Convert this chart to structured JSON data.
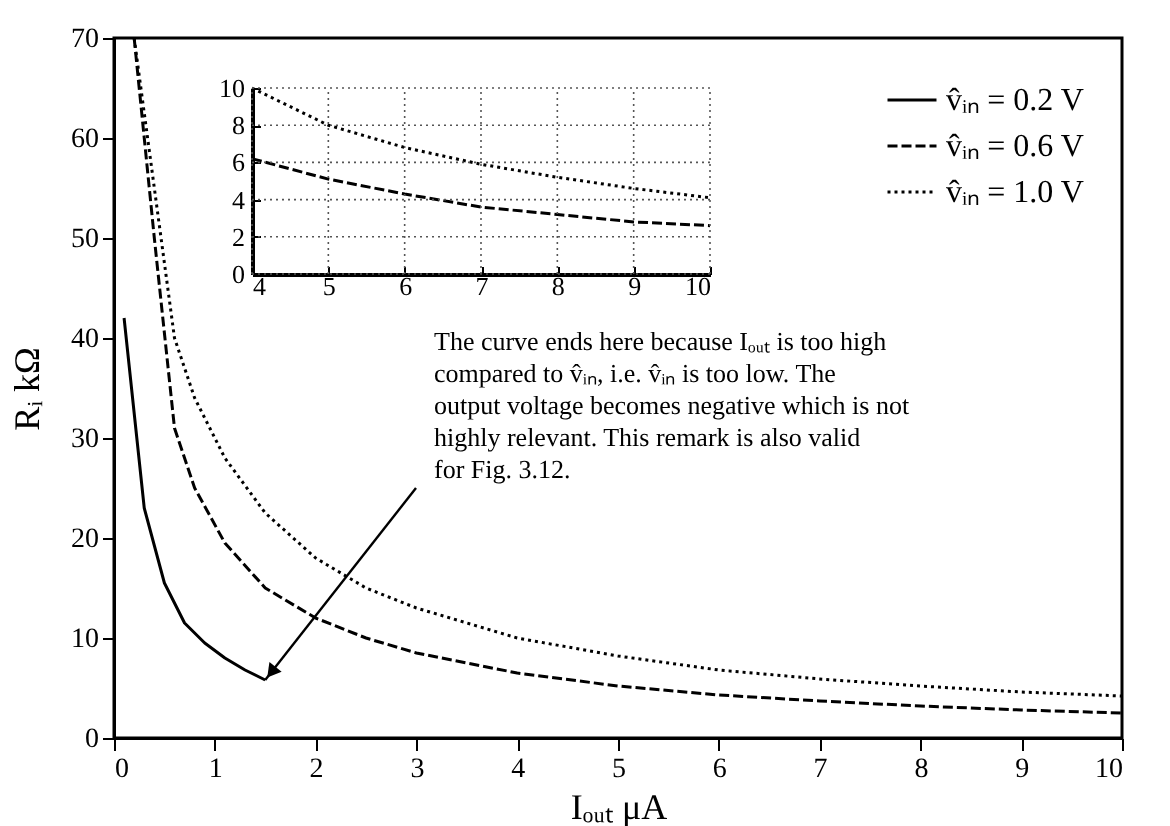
{
  "chart_data": [
    {
      "type": "line",
      "xlabel": "Iₒᵤₜ μA",
      "ylabel": "Rᵢ kΩ",
      "xlim": [
        0,
        10
      ],
      "ylim": [
        0,
        70
      ],
      "xticks": [
        0,
        1,
        2,
        3,
        4,
        5,
        6,
        7,
        8,
        9,
        10
      ],
      "yticks": [
        0,
        10,
        20,
        30,
        40,
        50,
        60,
        70
      ],
      "grid": false,
      "legend": "top right",
      "marker": "none",
      "annotations": [
        {
          "text": "The curve ends here because Iₒᵤₜ is too high compared to v̂ᵢₙ, i.e. v̂ᵢₙ is too low. The output voltage becomes negative which is not highly relevant. This remark is also valid for Fig. 3.12.",
          "x": 1.5,
          "y": 5.8
        }
      ],
      "series": [
        {
          "name": "v̂ᵢₙ = 0.2 V",
          "color": "#000000",
          "line_style": "solid",
          "x": [
            0.1,
            0.3,
            0.5,
            0.7,
            0.9,
            1.1,
            1.3,
            1.5
          ],
          "values": [
            42,
            23,
            15.5,
            11.5,
            9.5,
            8,
            6.8,
            5.8
          ]
        },
        {
          "name": "v̂ᵢₙ = 0.6 V",
          "color": "#000000",
          "line_style": "dashed",
          "x": [
            0.2,
            0.4,
            0.6,
            0.8,
            1.1,
            1.5,
            2,
            2.5,
            3,
            4,
            5,
            6,
            7,
            8,
            9,
            10
          ],
          "values": [
            70,
            50,
            31,
            25,
            19.5,
            15,
            12,
            10,
            8.5,
            6.5,
            5.2,
            4.3,
            3.7,
            3.2,
            2.8,
            2.5
          ]
        },
        {
          "name": "v̂ᵢₙ = 1.0 V",
          "color": "#000000",
          "line_style": "dotted",
          "x": [
            0.2,
            0.4,
            0.6,
            0.8,
            1.1,
            1.5,
            2,
            2.5,
            3,
            4,
            5,
            6,
            7,
            8,
            9,
            10
          ],
          "values": [
            70,
            55,
            40,
            34,
            28,
            22.5,
            18,
            15,
            13,
            10,
            8.2,
            6.8,
            5.9,
            5.2,
            4.6,
            4.2
          ]
        }
      ]
    },
    {
      "type": "line",
      "xlim": [
        4,
        10
      ],
      "ylim": [
        0,
        10
      ],
      "xticks": [
        4,
        5,
        6,
        7,
        8,
        9,
        10
      ],
      "yticks": [
        0,
        2,
        4,
        6,
        8,
        10
      ],
      "grid": true,
      "legend": false,
      "marker": "none",
      "series": [
        {
          "color": "#000000",
          "line_style": "dashed",
          "x": [
            4,
            5,
            6,
            7,
            8,
            9,
            10
          ],
          "values": [
            6.2,
            5.1,
            4.3,
            3.6,
            3.2,
            2.8,
            2.6
          ]
        },
        {
          "color": "#000000",
          "line_style": "dotted",
          "x": [
            4,
            5,
            6,
            7,
            8,
            9,
            10
          ],
          "values": [
            10,
            8,
            6.8,
            5.9,
            5.2,
            4.6,
            4.1
          ]
        }
      ]
    }
  ]
}
